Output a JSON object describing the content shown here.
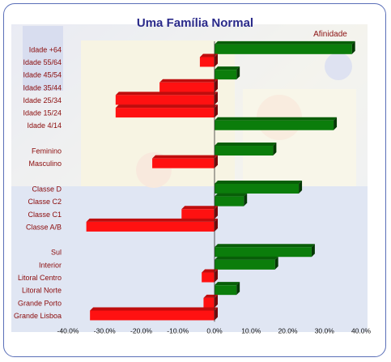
{
  "chart_data": {
    "type": "bar",
    "orientation": "horizontal",
    "title": "Uma Família Normal",
    "legend": {
      "label": "Afinidade",
      "placement": "top-right"
    },
    "categories": [
      "Idade +64",
      "Idade 55/64",
      "Idade 45/54",
      "Idade 35/44",
      "Idade 25/34",
      "Idade 15/24",
      "Idade 4/14",
      "",
      "Feminino",
      "Masculino",
      "",
      "Classe D",
      "Classe C2",
      "Classe C1",
      "Classe A/B",
      "",
      "Sul",
      "Interior",
      "Litoral Centro",
      "Litoral Norte",
      "Grande Porto",
      "Grande Lisboa"
    ],
    "values": [
      37.5,
      -4,
      6,
      -15,
      -27,
      -27,
      32.5,
      null,
      16,
      -17,
      null,
      23,
      8,
      -9,
      -35,
      null,
      26.5,
      16.5,
      -3.5,
      6,
      -3,
      -34
    ],
    "xlim": [
      -40,
      40
    ],
    "xticks": [
      -40,
      -30,
      -20,
      -10,
      0,
      10,
      20,
      30,
      40
    ],
    "xtick_labels": [
      "-40.0%",
      "-30.0%",
      "-20.0%",
      "-10.0%",
      "0.0%",
      "10.0%",
      "20.0%",
      "30.0%",
      "40.0%"
    ],
    "positive_color": "#0b7d0b",
    "negative_color": "#ff1111",
    "grid": false
  }
}
